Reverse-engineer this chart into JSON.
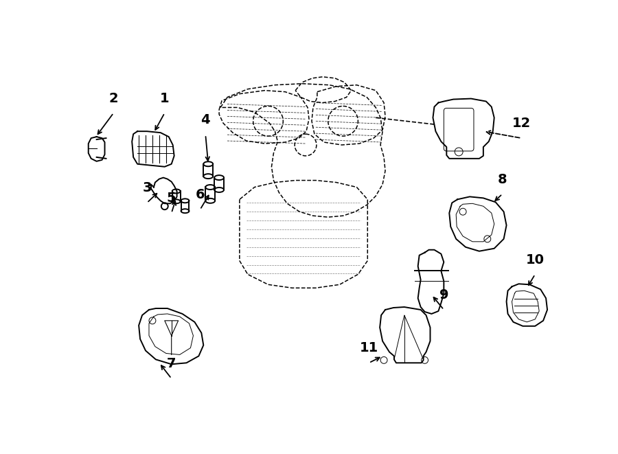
{
  "bg_color": "#ffffff",
  "line_color": "#000000",
  "fig_width": 9.0,
  "fig_height": 6.61,
  "dpi": 100,
  "lw_main": 1.4,
  "lw_dash": 1.1,
  "lw_thin": 0.7,
  "label_fontsize": 14
}
